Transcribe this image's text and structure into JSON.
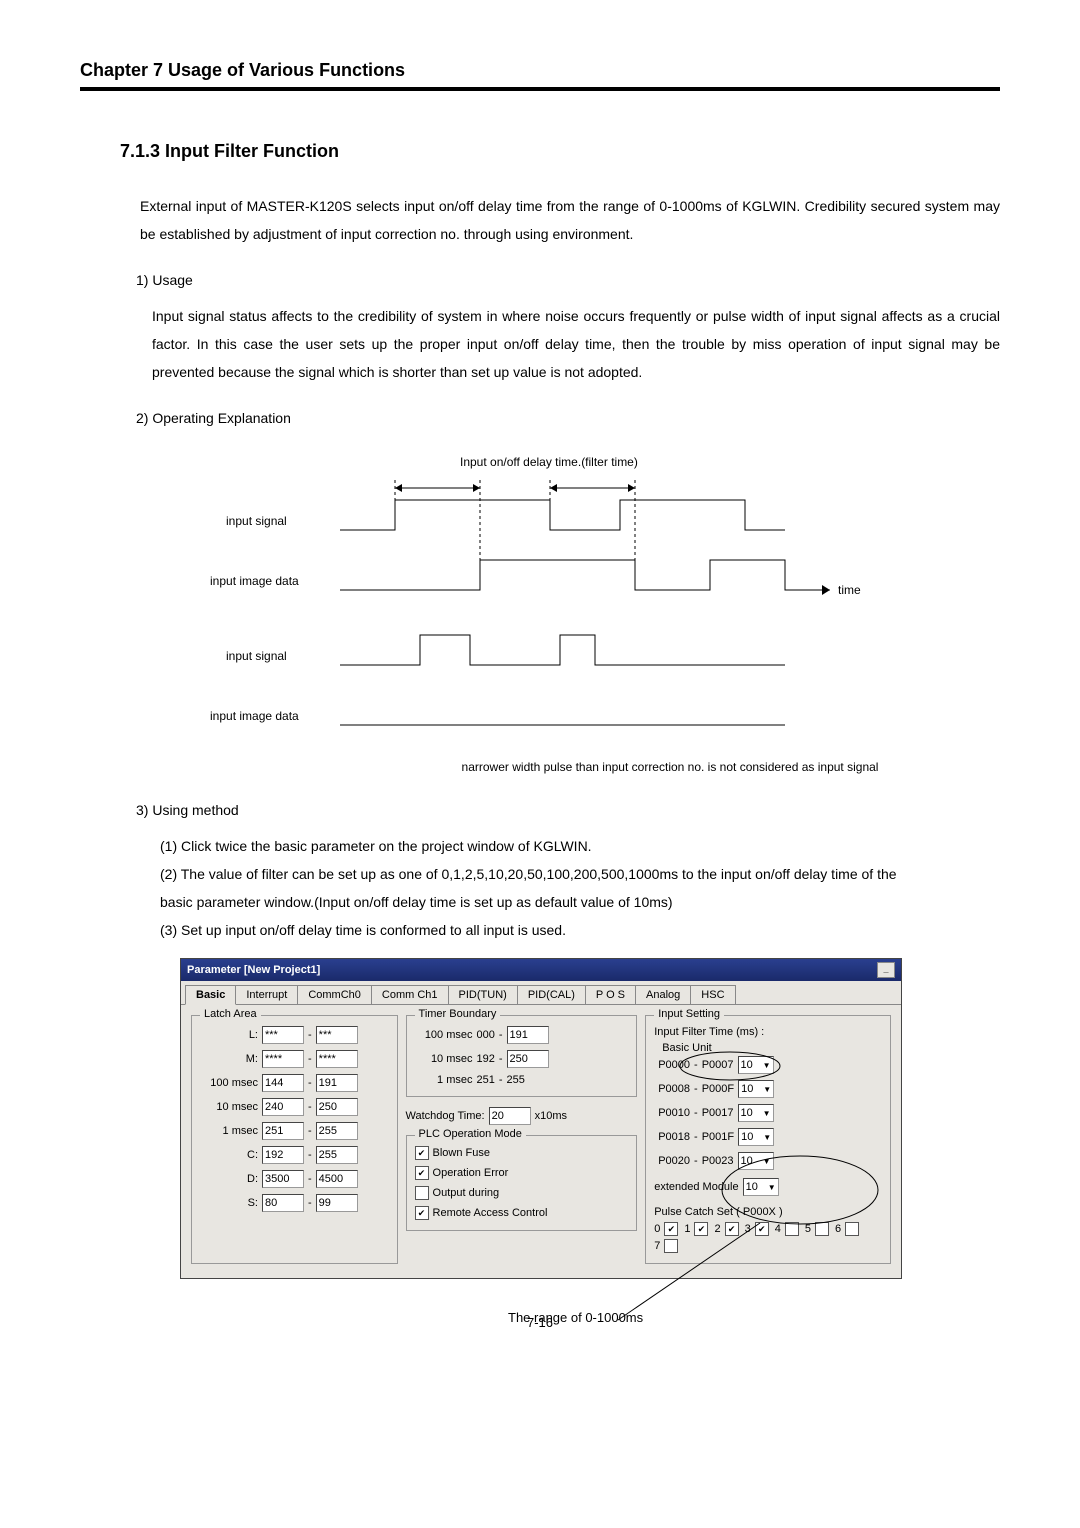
{
  "chapter_header": "Chapter 7    Usage of Various Functions",
  "section_title": "7.1.3 Input Filter Function",
  "intro": "External input of MASTER-K120S selects input on/off delay time from the range of 0-1000ms of KGLWIN. Credibility secured system may be established by adjustment of input correction no. through using environment.",
  "usage_head": "1) Usage",
  "usage_text": "Input signal status affects to the credibility of system in where noise occurs frequently or pulse width of input signal affects as a crucial factor. In this case the user sets up the proper input on/off delay time, then the trouble by miss operation of input signal may be prevented because the signal which is shorter than set up value is not adopted.",
  "op_head": "2) Operating Explanation",
  "diagram": {
    "top_label": "Input on/off delay time.(filter time)",
    "rows": [
      "input    signal",
      "input image data",
      "input    signal",
      "input image data"
    ],
    "time_label": "time",
    "caption": "narrower width pulse than input correction no. is not considered as input signal"
  },
  "method_head": "3) Using method",
  "method_items": [
    "(1) Click twice the basic parameter on the project window of KGLWIN.",
    "(2) The value of filter can be set up as one of 0,1,2,5,10,20,50,100,200,500,1000ms to the input on/off delay time of the",
    "     basic parameter window.(Input on/off delay time is set up as default value of 10ms)",
    "(3) Set up input on/off delay time is conformed to all input is used."
  ],
  "dialog": {
    "title": "Parameter [New Project1]",
    "tabs": [
      "Basic",
      "Interrupt",
      "CommCh0",
      "Comm Ch1",
      "PID(TUN)",
      "PID(CAL)",
      "P O S",
      "Analog",
      "HSC"
    ],
    "latch": {
      "title": "Latch Area",
      "rows": [
        {
          "lbl": "L:",
          "a": "***",
          "b": "***"
        },
        {
          "lbl": "M:",
          "a": "****",
          "b": "****"
        },
        {
          "lbl": "100 msec",
          "a": "144",
          "b": "191"
        },
        {
          "lbl": "10 msec",
          "a": "240",
          "b": "250"
        },
        {
          "lbl": "1 msec",
          "a": "251",
          "b": "255"
        },
        {
          "lbl": "C:",
          "a": "192",
          "b": "255"
        },
        {
          "lbl": "D:",
          "a": "3500",
          "b": "4500"
        },
        {
          "lbl": "S:",
          "a": "80",
          "b": "99"
        }
      ]
    },
    "timer": {
      "title": "Timer Boundary",
      "rows": [
        {
          "lbl": "100 msec",
          "a": "000",
          "b": "191"
        },
        {
          "lbl": "10 msec",
          "a": "192",
          "b": "250"
        },
        {
          "lbl": "1 msec",
          "a": "251",
          "b": "255",
          "plain_b": true
        }
      ]
    },
    "watchdog": {
      "label": "Watchdog Time:",
      "val": "20",
      "unit": "x10ms"
    },
    "plc": {
      "title": "PLC Operation Mode",
      "items": [
        {
          "label": "Blown Fuse",
          "checked": true
        },
        {
          "label": "Operation Error",
          "checked": true
        },
        {
          "label": "Output during",
          "checked": false
        },
        {
          "label": "Remote Access Control",
          "checked": true
        }
      ]
    },
    "input_setting": {
      "title": "Input Setting",
      "filter_label": "Input Filter  Time (ms) :",
      "basic_unit": "Basic Unit",
      "ranges": [
        {
          "a": "P0000",
          "b": "P0007",
          "v": "10"
        },
        {
          "a": "P0008",
          "b": "P000F",
          "v": "10"
        },
        {
          "a": "P0010",
          "b": "P0017",
          "v": "10"
        },
        {
          "a": "P0018",
          "b": "P001F",
          "v": "10"
        },
        {
          "a": "P0020",
          "b": "P0023",
          "v": "10"
        }
      ],
      "ext_label": "extended Module",
      "ext_val": "10",
      "pulse_label": "Pulse Catch Set ( P000X )",
      "pulse_bits": [
        {
          "n": "0",
          "c": true
        },
        {
          "n": "1",
          "c": true
        },
        {
          "n": "2",
          "c": true
        },
        {
          "n": "3",
          "c": true
        },
        {
          "n": "4",
          "c": false
        },
        {
          "n": "5",
          "c": false
        },
        {
          "n": "6",
          "c": false
        },
        {
          "n": "7",
          "c": false
        }
      ]
    }
  },
  "annot_basic": "Basic Unit",
  "annot_range": "The range of 0-1000ms",
  "page_number": "7-16"
}
